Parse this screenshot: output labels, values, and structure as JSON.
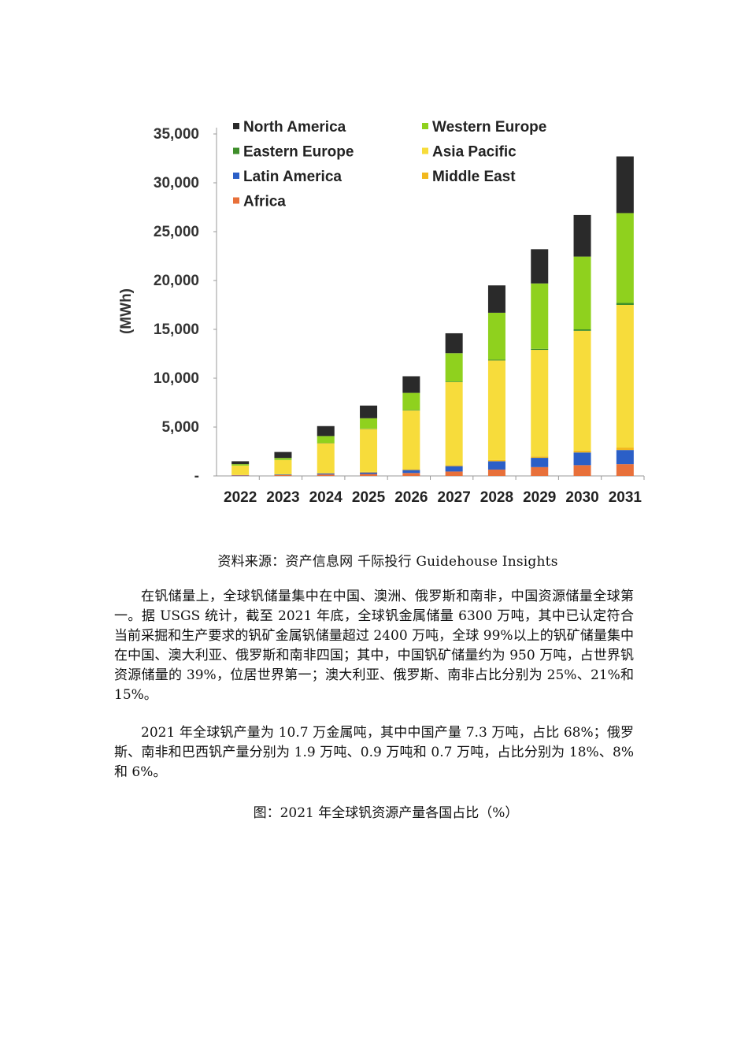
{
  "chart_data": {
    "type": "bar",
    "stacked": true,
    "ylabel": "(MWh)",
    "ylim": [
      0,
      35000
    ],
    "yticks": [
      "-",
      "5,000",
      "10,000",
      "15,000",
      "20,000",
      "25,000",
      "30,000",
      "35,000"
    ],
    "ytick_values": [
      0,
      5000,
      10000,
      15000,
      20000,
      25000,
      30000,
      35000
    ],
    "categories": [
      "2022",
      "2023",
      "2024",
      "2025",
      "2026",
      "2027",
      "2028",
      "2029",
      "2030",
      "2031"
    ],
    "legend_position": "top",
    "series": [
      {
        "name": "Africa",
        "color": "#e8703a",
        "values": [
          50,
          80,
          150,
          200,
          300,
          450,
          650,
          900,
          1100,
          1200
        ]
      },
      {
        "name": "Latin America",
        "color": "#2b5fc7",
        "values": [
          30,
          60,
          100,
          150,
          300,
          550,
          850,
          950,
          1300,
          1450
        ]
      },
      {
        "name": "Middle East",
        "color": "#f2b81e",
        "values": [
          20,
          30,
          50,
          60,
          80,
          100,
          120,
          150,
          200,
          250
        ]
      },
      {
        "name": "Asia Pacific",
        "color": "#f7dc3b",
        "values": [
          950,
          1450,
          3050,
          4400,
          6020,
          8500,
          10200,
          10900,
          12250,
          14600
        ]
      },
      {
        "name": "Eastern Europe",
        "color": "#3e8e2a",
        "values": [
          10,
          15,
          30,
          40,
          50,
          60,
          80,
          100,
          150,
          200
        ]
      },
      {
        "name": "Western Europe",
        "color": "#8fd11e",
        "values": [
          140,
          200,
          700,
          1050,
          1750,
          2900,
          4800,
          6700,
          7450,
          9200
        ]
      },
      {
        "name": "North America",
        "color": "#2a2a2a",
        "values": [
          300,
          615,
          1020,
          1300,
          1700,
          2040,
          2800,
          3500,
          4250,
          5800
        ]
      }
    ],
    "legend_order": [
      "North America",
      "Western Europe",
      "Eastern Europe",
      "Asia Pacific",
      "Latin America",
      "Middle East",
      "Africa"
    ]
  },
  "source_text": "资料来源：资产信息网  千际投行  Guidehouse Insights",
  "paragraph1": "在钒储量上，全球钒储量集中在中国、澳洲、俄罗斯和南非，中国资源储量全球第一。据 USGS 统计，截至 2021 年底，全球钒金属储量 6300 万吨，其中已认定符合当前采掘和生产要求的钒矿金属钒储量超过 2400 万吨，全球 99%以上的钒矿储量集中在中国、澳大利亚、俄罗斯和南非四国；其中，中国钒矿储量约为 950 万吨，占世界钒资源储量的 39%，位居世界第一；澳大利亚、俄罗斯、南非占比分别为 25%、21%和 15%。",
  "paragraph2": "2021 年全球钒产量为 10.7 万金属吨，其中中国产量 7.3 万吨，占比  68%；俄罗斯、南非和巴西钒产量分别为 1.9 万吨、0.9 万吨和 0.7 万吨，占比分别为 18%、8%和 6%。",
  "figure_caption": "图：2021 年全球钒资源产量各国占比（%）"
}
